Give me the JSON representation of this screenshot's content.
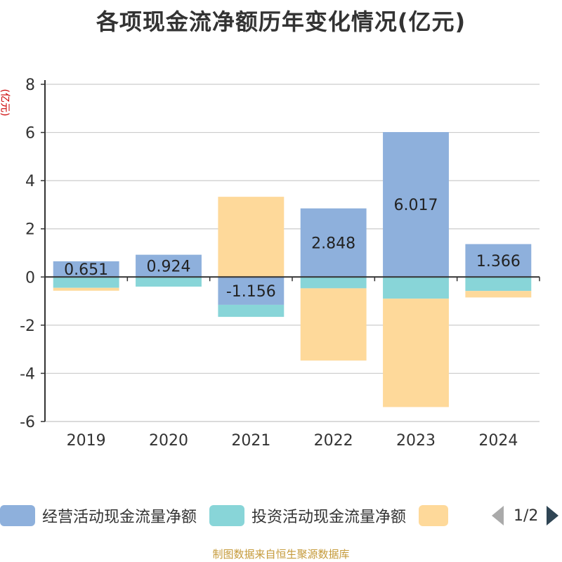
{
  "chart_data": {
    "type": "bar",
    "title": "各项现金流净额历年变化情况(亿元)",
    "ylabel": "(亿元)",
    "categories": [
      "2019",
      "2020",
      "2021",
      "2022",
      "2023",
      "2024"
    ],
    "ylim": [
      -6,
      8
    ],
    "yticks": [
      8,
      6,
      4,
      2,
      0,
      -2,
      -4,
      -6
    ],
    "grid": true,
    "stacked": true,
    "series": [
      {
        "name": "经营活动现金流量净额",
        "color": "#8eb0dc",
        "values": [
          0.651,
          0.924,
          -1.156,
          2.848,
          6.017,
          1.366
        ],
        "data_labels": [
          "0.651",
          "0.924",
          "-1.156",
          "2.848",
          "6.017",
          "1.366"
        ]
      },
      {
        "name": "投资活动现金流量净额",
        "color": "#88d5d8",
        "values": [
          -0.45,
          -0.4,
          -0.5,
          -0.47,
          -0.9,
          -0.58
        ]
      },
      {
        "name": "",
        "color": "#fed99a",
        "values": [
          -0.12,
          0,
          3.33,
          -3.0,
          -4.5,
          -0.27
        ]
      }
    ],
    "legend_position": "bottom"
  },
  "legend": {
    "page": "1/2"
  },
  "source": "制图数据来自恒生聚源数据库"
}
